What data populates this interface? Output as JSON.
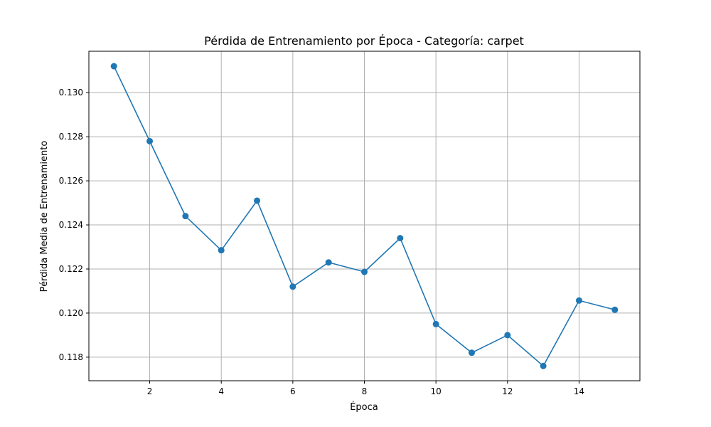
{
  "chart_data": {
    "type": "line",
    "title": "Pérdida de Entrenamiento por Época - Categoría: carpet",
    "xlabel": "Época",
    "ylabel": "Pérdida Media de Entrenamiento",
    "x": [
      1,
      2,
      3,
      4,
      5,
      6,
      7,
      8,
      9,
      10,
      11,
      12,
      13,
      14,
      15
    ],
    "series": [
      {
        "name": "",
        "values": [
          0.1312,
          0.1278,
          0.1244,
          0.12285,
          0.1251,
          0.1212,
          0.1223,
          0.12187,
          0.1234,
          0.1195,
          0.1182,
          0.119,
          0.1176,
          0.12057,
          0.12015
        ],
        "color": "#1f77b4",
        "marker": "circle"
      }
    ],
    "xticks": [
      2,
      4,
      6,
      8,
      10,
      12,
      14
    ],
    "xtick_labels": [
      "2",
      "4",
      "6",
      "8",
      "10",
      "12",
      "14"
    ],
    "yticks": [
      0.118,
      0.12,
      0.122,
      0.124,
      0.126,
      0.128,
      0.13
    ],
    "ytick_labels": [
      "0.118",
      "0.120",
      "0.122",
      "0.124",
      "0.126",
      "0.128",
      "0.130"
    ],
    "xlim": [
      0.3,
      15.7
    ],
    "ylim": [
      0.11693,
      0.13188
    ],
    "grid": true,
    "legend": false
  }
}
